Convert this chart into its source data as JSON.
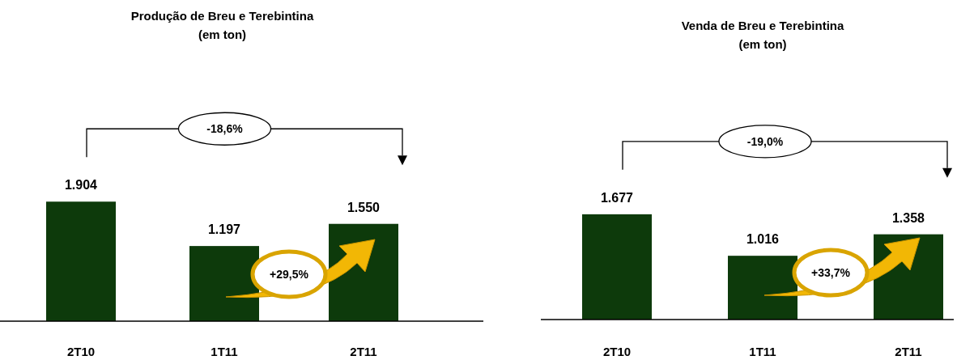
{
  "chart_data": [
    {
      "type": "bar",
      "title": "Produção de  Breu e Terebintina",
      "subtitle": "(em ton)",
      "categories": [
        "2T10",
        "1T11",
        "2T11"
      ],
      "values": [
        1904,
        1197,
        1550
      ],
      "value_labels": [
        "1.904",
        "1.197",
        "1.550"
      ],
      "color": "#0d3a0b",
      "annotations": [
        "-18,6%",
        "+29,5%"
      ]
    },
    {
      "type": "bar",
      "title": "Venda de  Breu e Terebintina",
      "subtitle": "(em ton)",
      "categories": [
        "2T10",
        "1T11",
        "2T11"
      ],
      "values": [
        1677,
        1016,
        1358
      ],
      "value_labels": [
        "1.677",
        "1.016",
        "1.358"
      ],
      "color": "#0d3a0b",
      "annotations": [
        "-19,0%",
        "+33,7%"
      ]
    }
  ]
}
